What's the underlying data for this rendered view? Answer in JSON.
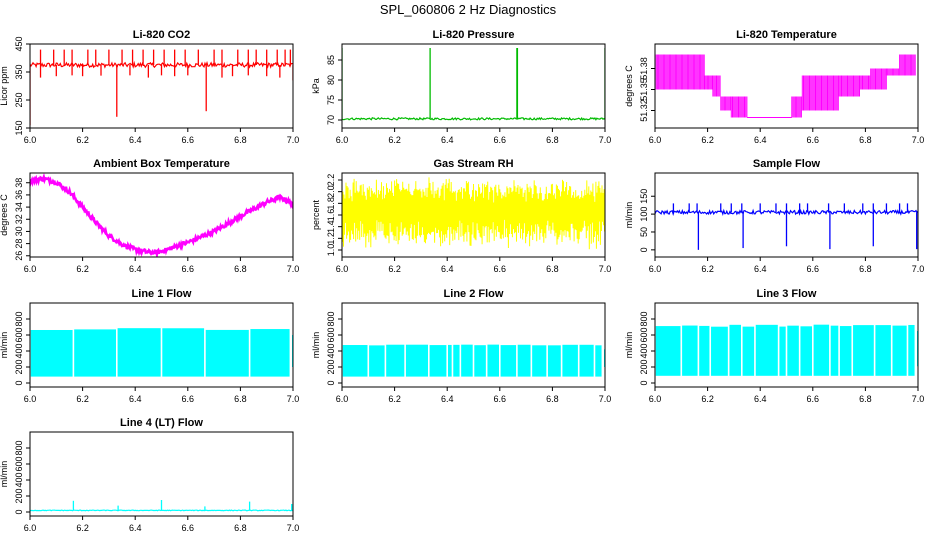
{
  "figure_title": "SPL_060806  2 Hz Diagnostics",
  "chart_data": [
    {
      "id": "co2",
      "type": "line",
      "title": "Li-820 CO2",
      "ylabel": "Licor ppm",
      "xlabel": "",
      "color": "#ff0000",
      "xlim": [
        6.0,
        7.0
      ],
      "ylim": [
        150,
        450
      ],
      "xticks": [
        "6.0",
        "6.2",
        "6.4",
        "6.6",
        "6.8",
        "7.0"
      ],
      "yticks": [
        "150",
        "250",
        "350",
        "450"
      ],
      "series": [
        {
          "name": "CO2",
          "pattern": "baseline-spikes",
          "baseline": 375,
          "noise": 8,
          "spikes_up": [
            6.04,
            6.09,
            6.13,
            6.16,
            6.22,
            6.25,
            6.3,
            6.35,
            6.39,
            6.43,
            6.47,
            6.51,
            6.55,
            6.59,
            6.64,
            6.7,
            6.73,
            6.79,
            6.83,
            6.86,
            6.9,
            6.94,
            6.97,
            6.99
          ],
          "spike_up_value": 430,
          "spikes_down": [
            [
              6.0,
              160
            ],
            [
              6.04,
              330
            ],
            [
              6.1,
              335
            ],
            [
              6.16,
              338
            ],
            [
              6.2,
              335
            ],
            [
              6.27,
              337
            ],
            [
              6.33,
              190
            ],
            [
              6.38,
              338
            ],
            [
              6.45,
              330
            ],
            [
              6.5,
              338
            ],
            [
              6.55,
              335
            ],
            [
              6.6,
              338
            ],
            [
              6.67,
              210
            ],
            [
              6.73,
              330
            ],
            [
              6.77,
              335
            ],
            [
              6.83,
              338
            ],
            [
              6.9,
              335
            ],
            [
              6.95,
              330
            ],
            [
              7.0,
              320
            ]
          ]
        }
      ]
    },
    {
      "id": "pressure",
      "type": "line",
      "title": "Li-820 Pressure",
      "ylabel": "kPa",
      "xlabel": "",
      "color": "#00bb00",
      "xlim": [
        6.0,
        7.0
      ],
      "ylim": [
        68,
        89
      ],
      "xticks": [
        "6.0",
        "6.2",
        "6.4",
        "6.6",
        "6.8",
        "7.0"
      ],
      "yticks": [
        "70",
        "75",
        "80",
        "85"
      ],
      "series": [
        {
          "name": "Pressure",
          "pattern": "baseline-spikes",
          "baseline": 70.3,
          "noise": 0.25,
          "spikes_up": [
            6.0,
            6.335,
            6.665,
            6.667,
            7.0
          ],
          "spike_up_value": 88,
          "spikes_down": []
        }
      ]
    },
    {
      "id": "temp",
      "type": "line",
      "title": "Li-820 Temperature",
      "ylabel": "degrees C",
      "xlabel": "",
      "color": "#ff00ff",
      "xlim": [
        6.0,
        7.0
      ],
      "ylim": [
        51.295,
        51.415
      ],
      "xticks": [
        "6.0",
        "6.2",
        "6.4",
        "6.6",
        "6.8",
        "7.0"
      ],
      "yticks": [
        "51.32",
        "51.35",
        "51.38"
      ],
      "series": [
        {
          "name": "Temperature",
          "pattern": "step-band",
          "steps": [
            [
              6.0,
              6.19,
              51.35,
              51.4
            ],
            [
              6.19,
              6.22,
              51.35,
              51.37
            ],
            [
              6.22,
              6.25,
              51.34,
              51.37
            ],
            [
              6.25,
              6.29,
              51.32,
              51.34
            ],
            [
              6.29,
              6.35,
              51.31,
              51.34
            ],
            [
              6.35,
              6.52,
              51.31,
              51.31
            ],
            [
              6.52,
              6.56,
              51.31,
              51.34
            ],
            [
              6.56,
              6.7,
              51.32,
              51.37
            ],
            [
              6.7,
              6.78,
              51.34,
              51.37
            ],
            [
              6.78,
              6.82,
              51.35,
              51.37
            ],
            [
              6.82,
              6.88,
              51.35,
              51.38
            ],
            [
              6.88,
              6.93,
              51.37,
              51.38
            ],
            [
              6.93,
              6.99,
              51.37,
              51.4
            ]
          ]
        }
      ]
    },
    {
      "id": "ambient",
      "type": "line",
      "title": "Ambient Box Temperature",
      "ylabel": "degrees C",
      "xlabel": "",
      "color": "#ff00ff",
      "xlim": [
        6.0,
        7.0
      ],
      "ylim": [
        25.8,
        39.6
      ],
      "xticks": [
        "6.0",
        "6.2",
        "6.4",
        "6.6",
        "6.8",
        "7.0"
      ],
      "yticks": [
        "26",
        "28",
        "30",
        "32",
        "34",
        "36",
        "38"
      ],
      "series": [
        {
          "name": "Ambient",
          "pattern": "curve",
          "noise": 0.35,
          "points": [
            [
              6.0,
              38.3
            ],
            [
              6.05,
              38.7
            ],
            [
              6.1,
              38.1
            ],
            [
              6.15,
              36.5
            ],
            [
              6.2,
              34.0
            ],
            [
              6.25,
              31.5
            ],
            [
              6.3,
              29.3
            ],
            [
              6.35,
              27.9
            ],
            [
              6.4,
              27.0
            ],
            [
              6.45,
              26.6
            ],
            [
              6.48,
              26.5
            ],
            [
              6.52,
              27.0
            ],
            [
              6.6,
              28.2
            ],
            [
              6.7,
              30.0
            ],
            [
              6.8,
              32.5
            ],
            [
              6.9,
              34.8
            ],
            [
              6.95,
              35.6
            ],
            [
              6.98,
              35.0
            ],
            [
              7.0,
              34.4
            ]
          ]
        }
      ]
    },
    {
      "id": "rh",
      "type": "line",
      "title": "Gas Stream RH",
      "ylabel": "percent",
      "xlabel": "",
      "color": "#ffff00",
      "xlim": [
        6.0,
        7.0
      ],
      "ylim": [
        0.88,
        2.32
      ],
      "xticks": [
        "6.0",
        "6.2",
        "6.4",
        "6.6",
        "6.8",
        "7.0"
      ],
      "yticks": [
        "1.0",
        "1.2",
        "1.4",
        "1.6",
        "1.8",
        "2.0",
        "2.2"
      ],
      "series": [
        {
          "name": "RH",
          "pattern": "dense-band",
          "lo": [
            1.0,
            1.2
          ],
          "hi": [
            2.0,
            2.25
          ],
          "count": 520
        }
      ]
    },
    {
      "id": "sample",
      "type": "line",
      "title": "Sample Flow",
      "ylabel": "ml/min",
      "xlabel": "",
      "color": "#0000ff",
      "xlim": [
        6.0,
        7.0
      ],
      "ylim": [
        -20,
        215
      ],
      "xticks": [
        "6.0",
        "6.2",
        "6.4",
        "6.6",
        "6.8",
        "7.0"
      ],
      "yticks": [
        "0",
        "50",
        "100",
        "150"
      ],
      "series": [
        {
          "name": "Sample",
          "pattern": "baseline-spikes",
          "baseline": 105,
          "noise": 5,
          "spikes_up": [
            6.07,
            6.13,
            6.16,
            6.25,
            6.29,
            6.33,
            6.4,
            6.46,
            6.5,
            6.55,
            6.58,
            6.66,
            6.72,
            6.79,
            6.83,
            6.88,
            6.93,
            6.96
          ],
          "spike_up_value": 130,
          "spikes_down": [
            [
              6.165,
              0
            ],
            [
              6.335,
              5
            ],
            [
              6.5,
              10
            ],
            [
              6.665,
              2
            ],
            [
              6.83,
              10
            ],
            [
              6.995,
              2
            ]
          ]
        }
      ]
    },
    {
      "id": "line1",
      "type": "line",
      "title": "Line 1 Flow",
      "ylabel": "ml/min",
      "xlabel": "",
      "color": "#00ffff",
      "xlim": [
        6.0,
        7.0
      ],
      "ylim": [
        -50,
        1000
      ],
      "xticks": [
        "6.0",
        "6.2",
        "6.4",
        "6.6",
        "6.8",
        "7.0"
      ],
      "yticks": [
        "0",
        "200",
        "400",
        "600",
        "800"
      ],
      "series": [
        {
          "name": "Line 1",
          "pattern": "block-band",
          "lo": 80,
          "hi": 650,
          "hi_peak": 690,
          "gaps": [
            6.165,
            6.33,
            6.5,
            6.665,
            6.835,
            6.99
          ]
        }
      ]
    },
    {
      "id": "line2",
      "type": "line",
      "title": "Line 2 Flow",
      "ylabel": "ml/min",
      "xlabel": "",
      "color": "#00ffff",
      "xlim": [
        6.0,
        7.0
      ],
      "ylim": [
        -50,
        1000
      ],
      "xticks": [
        "6.0",
        "6.2",
        "6.4",
        "6.6",
        "6.8",
        "7.0"
      ],
      "yticks": [
        "0",
        "200",
        "400",
        "600",
        "800"
      ],
      "series": [
        {
          "name": "Line 2",
          "pattern": "block-band",
          "lo": 80,
          "hi": 470,
          "hi_peak": 480,
          "gaps": [
            6.1,
            6.165,
            6.24,
            6.33,
            6.4,
            6.42,
            6.45,
            6.5,
            6.55,
            6.6,
            6.665,
            6.72,
            6.78,
            6.835,
            6.9,
            6.96,
            6.99
          ]
        }
      ]
    },
    {
      "id": "line3",
      "type": "line",
      "title": "Line 3 Flow",
      "ylabel": "ml/min",
      "xlabel": "",
      "color": "#00ffff",
      "xlim": [
        6.0,
        7.0
      ],
      "ylim": [
        -50,
        1000
      ],
      "xticks": [
        "6.0",
        "6.2",
        "6.4",
        "6.6",
        "6.8",
        "7.0"
      ],
      "yticks": [
        "0",
        "200",
        "400",
        "600",
        "800"
      ],
      "series": [
        {
          "name": "Line 3",
          "pattern": "block-band",
          "lo": 90,
          "hi": 700,
          "hi_peak": 730,
          "gaps": [
            6.1,
            6.165,
            6.21,
            6.28,
            6.33,
            6.38,
            6.47,
            6.5,
            6.55,
            6.6,
            6.665,
            6.7,
            6.75,
            6.835,
            6.9,
            6.96,
            6.99
          ]
        }
      ]
    },
    {
      "id": "line4",
      "type": "line",
      "title": "Line 4 (LT) Flow",
      "ylabel": "ml/min",
      "xlabel": "",
      "color": "#00ffff",
      "xlim": [
        6.0,
        7.0
      ],
      "ylim": [
        -50,
        1000
      ],
      "xticks": [
        "6.0",
        "6.2",
        "6.4",
        "6.6",
        "6.8",
        "7.0"
      ],
      "yticks": [
        "0",
        "200",
        "400",
        "600",
        "800"
      ],
      "series": [
        {
          "name": "Line 4",
          "pattern": "baseline-spikes",
          "baseline": 20,
          "noise": 4,
          "spikes_up": [
            6.165,
            6.335,
            6.5,
            6.665,
            6.835,
            6.995
          ],
          "spike_up_values": [
            140,
            80,
            150,
            70,
            130,
            100
          ],
          "spikes_down": []
        }
      ]
    }
  ]
}
